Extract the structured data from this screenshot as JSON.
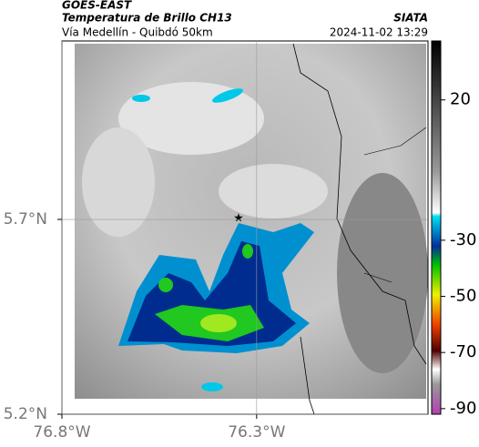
{
  "chart_data": {
    "type": "map",
    "title": "GOES-EAST",
    "subtitle": "Temperatura de Brillo CH13",
    "source": "SIATA",
    "location": "Vía Medellín - Quibdó 50km",
    "datetime": "2024-11-02 13:29",
    "xlim": [
      -76.8,
      -75.86
    ],
    "ylim": [
      5.2,
      6.158
    ],
    "xticks": [
      {
        "value": -76.8,
        "label": "76.8°W"
      },
      {
        "value": -76.3,
        "label": "76.3°W"
      }
    ],
    "yticks": [
      {
        "value": 5.2,
        "label": "5.2°N"
      },
      {
        "value": 5.7,
        "label": "5.7°N"
      }
    ],
    "clim": [
      -92,
      41
    ],
    "cticks": [
      20,
      -30,
      -50,
      -70,
      -90
    ]
  }
}
